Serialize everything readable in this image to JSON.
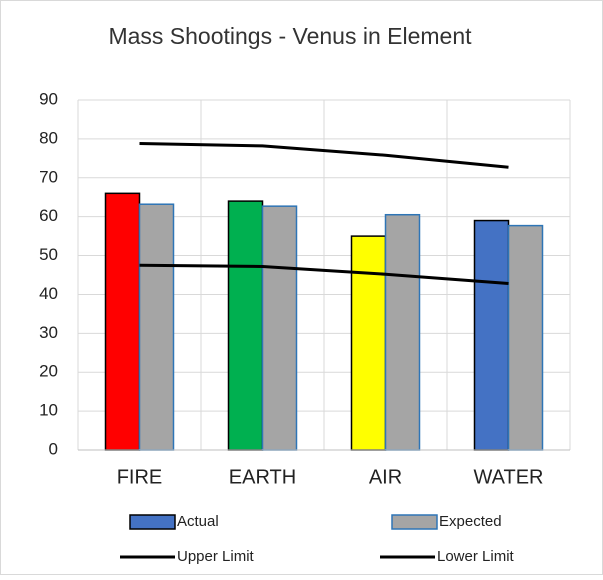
{
  "chart_data": {
    "type": "bar",
    "title": "Mass Shootings - Venus in Element",
    "categories": [
      "FIRE",
      "EARTH",
      "AIR",
      "WATER"
    ],
    "series": [
      {
        "name": "Actual",
        "type": "bar",
        "color": "#4472c4",
        "colors": [
          "#ff0000",
          "#00b050",
          "#ffff00",
          "#4472c4"
        ],
        "values": [
          66,
          64,
          55,
          59
        ]
      },
      {
        "name": "Expected",
        "type": "bar",
        "color": "#a5a5a5",
        "edge": "#2e75b6",
        "values": [
          63.2,
          62.7,
          60.5,
          57.7
        ]
      },
      {
        "name": "Upper Limit",
        "type": "line",
        "color": "#000000",
        "values": [
          78.8,
          78.2,
          75.8,
          72.7
        ]
      },
      {
        "name": "Lower Limit",
        "type": "line",
        "color": "#000000",
        "values": [
          47.5,
          47.2,
          45.2,
          42.8
        ]
      }
    ],
    "ylim": [
      0,
      90
    ],
    "yticks": [
      0,
      10,
      20,
      30,
      40,
      50,
      60,
      70,
      80,
      90
    ],
    "grid": true
  }
}
